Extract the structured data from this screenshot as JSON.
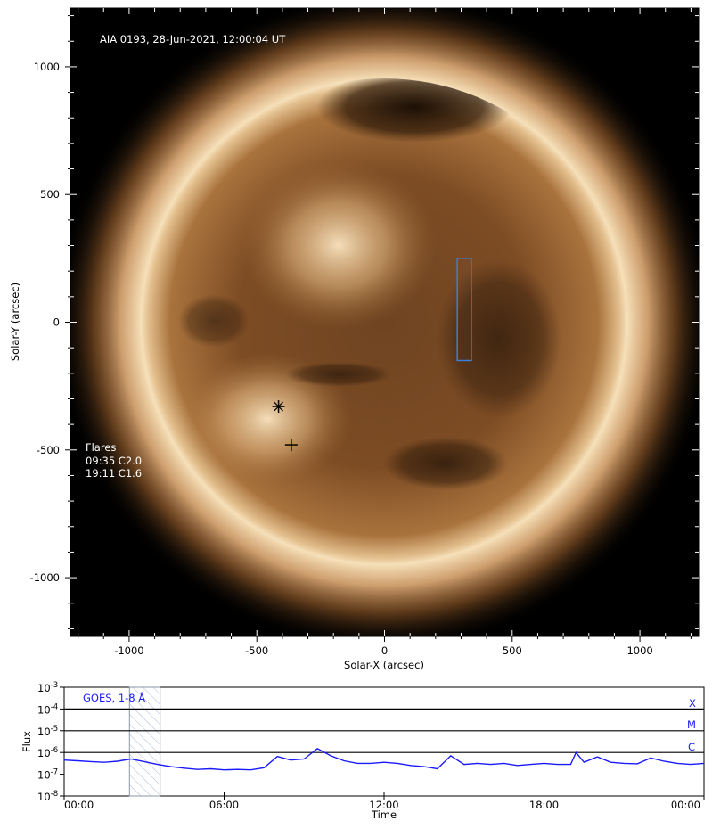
{
  "image": {
    "header_text": "AIA 0193, 28-Jun-2021, 12:00:04 UT",
    "flares_title": "Flares",
    "flares": [
      "09:35 C2.0",
      "19:11 C1.6"
    ],
    "flare_positions_arcsec": [
      [
        -415,
        -330
      ],
      [
        -365,
        -480
      ]
    ],
    "roi_box_arcsec": {
      "x": [
        285,
        340
      ],
      "y": [
        -150,
        250
      ]
    },
    "x_axis": {
      "label": "Solar-X (arcsec)",
      "ticks": [
        "-1000",
        "-500",
        "0",
        "500",
        "1000"
      ],
      "tick_values": [
        -1000,
        -500,
        0,
        500,
        1000
      ],
      "range": [
        -1230,
        1230
      ]
    },
    "y_axis": {
      "label": "Solar-Y (arcsec)",
      "ticks": [
        "1000",
        "500",
        "0",
        "-500",
        "-1000"
      ],
      "tick_values": [
        1000,
        500,
        0,
        -500,
        -1000
      ],
      "range": [
        -1230,
        1230
      ]
    },
    "colors": {
      "sun_core": "#7a4a22",
      "sun_limb": "#e8c79a",
      "roi_box": "#3a7fd9",
      "background": "#000000"
    }
  },
  "goes": {
    "title": "GOES, 1-8 Å",
    "y_label": "Flux",
    "x_label": "Time",
    "x_ticks": [
      "00:00",
      "06:00",
      "12:00",
      "18:00",
      "00:00"
    ],
    "y_ticks": [
      {
        "base": "10",
        "exp": "-3"
      },
      {
        "base": "10",
        "exp": "-4"
      },
      {
        "base": "10",
        "exp": "-5"
      },
      {
        "base": "10",
        "exp": "-6"
      },
      {
        "base": "10",
        "exp": "-7"
      },
      {
        "base": "10",
        "exp": "-8"
      }
    ],
    "class_labels": [
      "X",
      "M",
      "C"
    ],
    "shaded_interval_hours": [
      2.45,
      3.6
    ],
    "color": "#1a1aff",
    "flux_series": {
      "hours": [
        0,
        0.5,
        1,
        1.5,
        2,
        2.5,
        3,
        3.5,
        4,
        4.5,
        5,
        5.5,
        6,
        6.5,
        7,
        7.5,
        8,
        8.2,
        8.5,
        9,
        9.5,
        10,
        10.5,
        11,
        11.5,
        12,
        12.5,
        13,
        13.5,
        14,
        14.5,
        15,
        15.5,
        16,
        16.5,
        17,
        17.5,
        18,
        18.5,
        19,
        19.2,
        19.5,
        20,
        20.5,
        21,
        21.5,
        22,
        22.5,
        23,
        23.5,
        24
      ],
      "log_flux": [
        -6.35,
        -6.38,
        -6.42,
        -6.45,
        -6.4,
        -6.3,
        -6.42,
        -6.55,
        -6.65,
        -6.72,
        -6.78,
        -6.75,
        -6.8,
        -6.78,
        -6.8,
        -6.7,
        -6.18,
        -6.25,
        -6.35,
        -6.3,
        -5.82,
        -6.15,
        -6.38,
        -6.5,
        -6.5,
        -6.45,
        -6.5,
        -6.6,
        -6.65,
        -6.75,
        -6.15,
        -6.55,
        -6.5,
        -6.55,
        -6.5,
        -6.6,
        -6.55,
        -6.5,
        -6.55,
        -6.55,
        -6.0,
        -6.45,
        -6.2,
        -6.45,
        -6.5,
        -6.52,
        -6.25,
        -6.4,
        -6.5,
        -6.55,
        -6.5
      ]
    }
  }
}
